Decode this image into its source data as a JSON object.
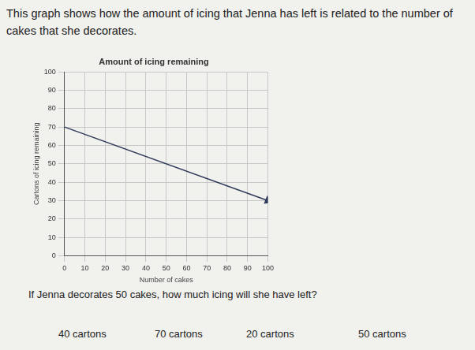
{
  "intro": "This graph shows how the amount of icing that Jenna has left is related to the number of cakes that she decorates.",
  "chart_data": {
    "type": "line",
    "title": "Amount of icing remaining",
    "x_label": "Number of cakes",
    "y_label": "Cartons of icing remaining",
    "x": [
      0,
      100
    ],
    "values": [
      70,
      30
    ],
    "color": "#2f3a5a",
    "xlim": [
      0,
      100
    ],
    "xticks": [
      0,
      10,
      20,
      30,
      40,
      50,
      60,
      70,
      80,
      90,
      100
    ],
    "ylim": [
      0,
      100
    ],
    "yticks": [
      0,
      10,
      20,
      30,
      40,
      50,
      60,
      70,
      80,
      90,
      100
    ],
    "grid": true
  },
  "question": "If Jenna decorates 50 cakes, how much icing will she have left?",
  "choices": [
    "40 cartons",
    "70 cartons",
    "20 cartons",
    "50 cartons"
  ]
}
